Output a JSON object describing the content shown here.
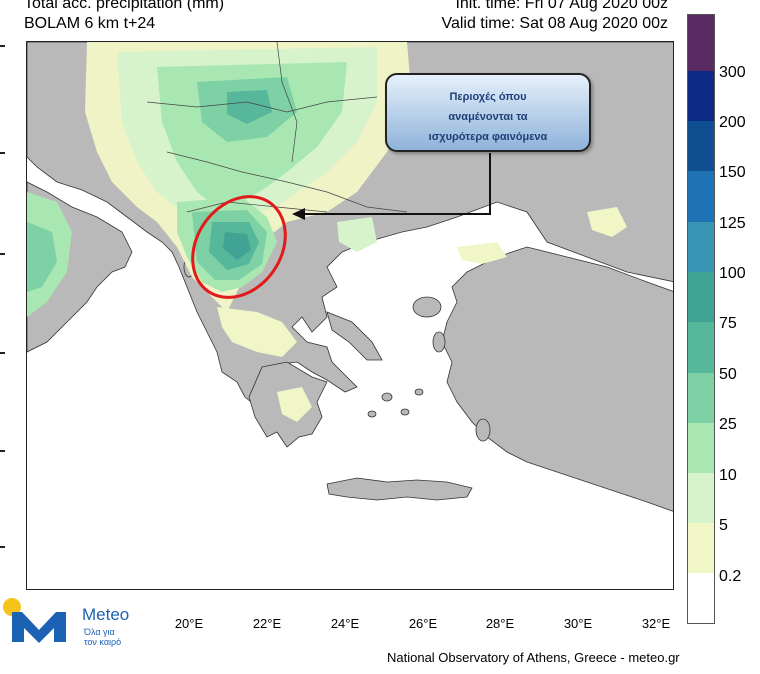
{
  "header": {
    "title": "Total acc. precipitation (mm)",
    "model": "BOLAM 6 km t+24",
    "init_time": "Init. time: Fri 07 Aug 2020 00z",
    "valid_time": "Valid time: Sat 08 Aug 2020 00z"
  },
  "map": {
    "longitude_labels": [
      "20°E",
      "22°E",
      "24°E",
      "26°E",
      "28°E",
      "30°E",
      "32°E"
    ],
    "callout_text": [
      "Περιοχές όπου",
      "αναμένονται τα",
      "ισχυρότερα φαινόμενα"
    ],
    "colors": {
      "land": "#b9b9b9",
      "sea": "#ffffff",
      "highlight_ellipse": "#e21a1a",
      "arrow": "#111111"
    }
  },
  "legend": {
    "levels": [
      "0.2",
      "5",
      "10",
      "25",
      "50",
      "75",
      "100",
      "125",
      "150",
      "200",
      "300"
    ],
    "colors": [
      "#ffffff",
      "#f1f6c6",
      "#d6f3cc",
      "#a8e7b2",
      "#7ed1a5",
      "#56b79a",
      "#40a394",
      "#3a95b5",
      "#1f73b4",
      "#104e92",
      "#0c2a86",
      "#5a2a63"
    ]
  },
  "logo": {
    "word": "Meteo",
    "tagline_line1": "Όλα για",
    "tagline_line2": "τον καιρό",
    "colors": {
      "brand_blue": "#1b62b5",
      "sun_yellow": "#f7c21a"
    }
  },
  "footer": {
    "credit": "National Observatory of Athens, Greece - meteo.gr"
  }
}
